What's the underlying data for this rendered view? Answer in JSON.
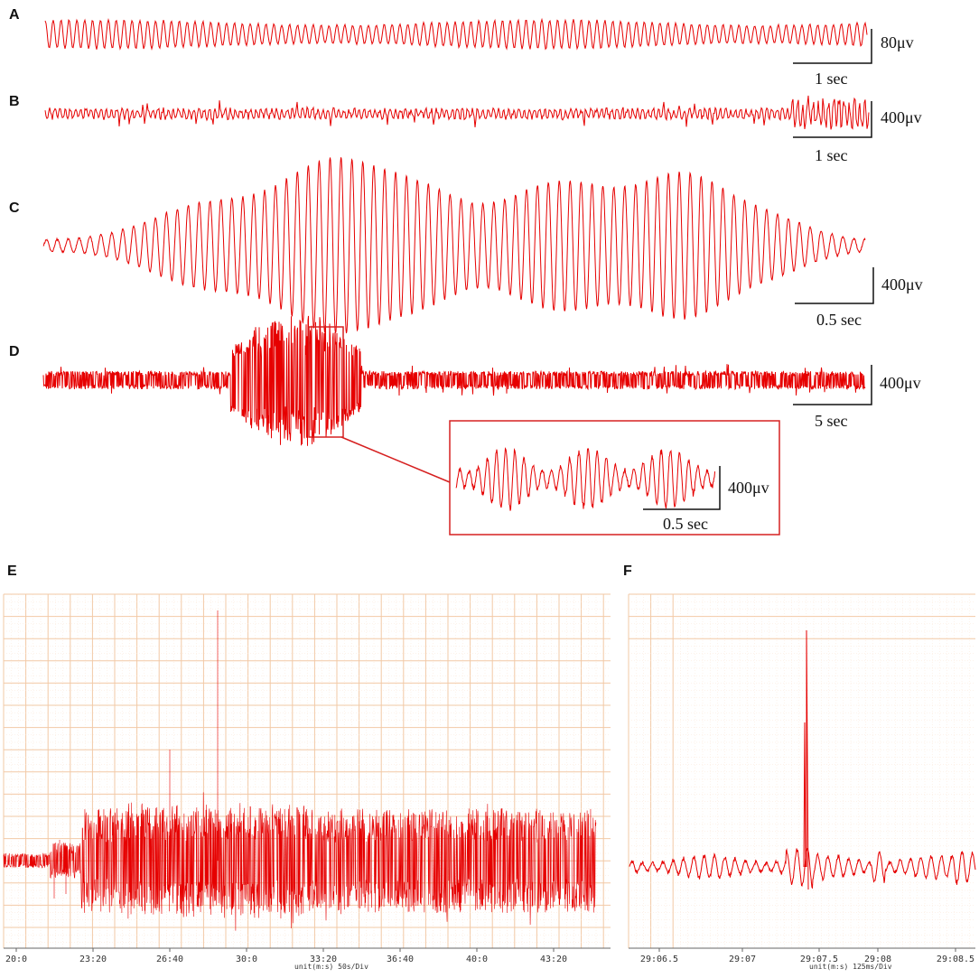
{
  "panels": {
    "A": {
      "label": "A",
      "amp_scale": "80μv",
      "time_scale": "1 sec"
    },
    "B": {
      "label": "B",
      "amp_scale": "400μv",
      "time_scale": "1 sec"
    },
    "C": {
      "label": "C",
      "amp_scale": "400μv",
      "time_scale": "0.5 sec"
    },
    "D": {
      "label": "D",
      "amp_scale": "400μv",
      "time_scale": "5 sec"
    },
    "D_inset": {
      "amp_scale": "400μv",
      "time_scale": "0.5 sec"
    },
    "E": {
      "label": "E",
      "x_ticks": [
        "20:0",
        "23:20",
        "26:40",
        "30:0",
        "33:20",
        "36:40",
        "40:0",
        "43:20"
      ],
      "unit": "unit(m:s) 50s/Div"
    },
    "F": {
      "label": "F",
      "x_ticks": [
        "29:06.5",
        "29:07",
        "29:07.5",
        "29:08",
        "29:08.5"
      ],
      "unit": "unit(m:s) 125ms/Div"
    }
  },
  "colors": {
    "trace": "#e60000",
    "grid_major": "#f2c9a6",
    "grid_minor": "#fbe6d4",
    "scale": "#111111",
    "inset_border": "#d62020"
  },
  "chart_data": [
    {
      "type": "line",
      "panel": "A",
      "description_free": true,
      "x_unit": "sec",
      "y_unit": "μv"
    },
    {
      "type": "line",
      "panel": "B",
      "x_unit": "sec",
      "y_unit": "μv"
    },
    {
      "type": "line",
      "panel": "C",
      "x_unit": "sec",
      "y_unit": "μv"
    },
    {
      "type": "line",
      "panel": "D",
      "x_unit": "sec",
      "y_unit": "μv"
    },
    {
      "type": "line",
      "panel": "E",
      "xticks": [
        "20:0",
        "23:20",
        "26:40",
        "30:0",
        "33:20",
        "36:40",
        "40:0",
        "43:20"
      ]
    },
    {
      "type": "line",
      "panel": "F",
      "xticks": [
        "29:06.5",
        "29:07",
        "29:07.5",
        "29:08",
        "29:08.5"
      ]
    }
  ]
}
